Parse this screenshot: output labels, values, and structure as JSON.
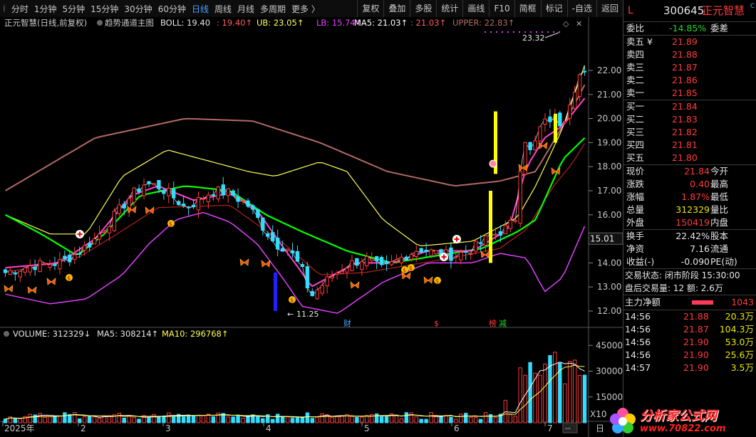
{
  "toolbar": {
    "periods": [
      "分时",
      "1分钟",
      "5分钟",
      "15分钟",
      "30分钟",
      "60分钟",
      "日线",
      "周线",
      "月线",
      "多周期",
      "更多 〉"
    ],
    "active": "日线",
    "tools": [
      "复权",
      "叠加",
      "多股",
      "统计",
      "画线",
      "F10",
      "简框",
      "标记"
    ],
    "self_select": "-自选",
    "back": "返回"
  },
  "main_legend": {
    "name": "正元智慧(日线,前复权)",
    "indicator": "趋势通道主图",
    "boll": "BOLL: 19.40",
    "boll2": ": 19.40↑",
    "ub": "UB: 23.05↑",
    "lb": "LB: 15.74↑",
    "ma5": "MA5: 21.03↑",
    "ma5b": ": 21.03↑",
    "upper": "UPPER: 22.83↑"
  },
  "price_axis": [
    "22.00",
    "21.00",
    "20.00",
    "19.00",
    "18.00",
    "17.00",
    "16.00",
    "15.00",
    "14.00",
    "13.00",
    "12.00"
  ],
  "price_marker": "15.01",
  "annotations": {
    "high": "23.32",
    "low": "11.25",
    "cai": "财",
    "dollar": "$",
    "lhb": "榜",
    "jian": "减"
  },
  "volume_legend": {
    "volume": "VOLUME: 312329↓",
    "ma5": "MA5: 308214↑",
    "ma10": "MA10: 296768↑"
  },
  "volume_axis": [
    "45000",
    "30000",
    "15000"
  ],
  "volume_unit": "X10",
  "x_axis": [
    "2025年",
    "2",
    "3",
    "4",
    "5",
    "6",
    "7"
  ],
  "x_axis_right": "日",
  "scroll_label": "--",
  "quote": {
    "flag": "L",
    "code": "300645",
    "name": "正元智慧",
    "badge": "C",
    "weibi_label": "委比",
    "weibi": "-14.85%",
    "weicha_label": "委差",
    "sell": [
      {
        "label": "卖五 ¥",
        "price": "21.89"
      },
      {
        "label": "卖四",
        "price": "21.88"
      },
      {
        "label": "卖三",
        "price": "21.87"
      },
      {
        "label": "卖二",
        "price": "21.86"
      },
      {
        "label": "卖一",
        "price": "21.85"
      }
    ],
    "buy": [
      {
        "label": "买一",
        "price": "21.84"
      },
      {
        "label": "买二",
        "price": "21.83"
      },
      {
        "label": "买三",
        "price": "21.82"
      },
      {
        "label": "买四",
        "price": "21.81"
      },
      {
        "label": "买五",
        "price": "21.80"
      }
    ],
    "stats": [
      {
        "l1": "现价",
        "v1": "21.84",
        "l2": "今开",
        "c": "red"
      },
      {
        "l1": "涨跌",
        "v1": "0.40",
        "l2": "最高",
        "c": "red"
      },
      {
        "l1": "涨幅",
        "v1": "1.87%",
        "l2": "最低",
        "c": "red"
      },
      {
        "l1": "总量",
        "v1": "312329",
        "l2": "量比",
        "c": "yellow"
      },
      {
        "l1": "外盘",
        "v1": "150419",
        "l2": "内盘",
        "c": "red"
      }
    ],
    "stats2": [
      {
        "l1": "换手",
        "v1": "22.42%",
        "l2": "股本"
      },
      {
        "l1": "净资",
        "v1": "7.16",
        "l2": "流通"
      },
      {
        "l1": "收益(-)",
        "v1": "-0.090",
        "l2": "PE(动)"
      }
    ],
    "trade_status": "交易状态: 闭市阶段 15:30:00",
    "after_hours": "盘后交易量: 12  额: 2.6万",
    "main_flow_label": "主力净额",
    "main_flow": "1043",
    "ticks": [
      {
        "time": "14:56",
        "price": "21.88",
        "vol": "20.3万"
      },
      {
        "time": "14:56",
        "price": "21.87",
        "vol": "104.3万"
      },
      {
        "time": "14:56",
        "price": "21.90",
        "vol": "53.0万"
      },
      {
        "time": "14:56",
        "price": "21.90",
        "vol": "25.6万"
      },
      {
        "time": "14:57",
        "price": "21.90",
        "vol": "3.5万"
      }
    ]
  },
  "watermark": {
    "text": "分析家公式网",
    "url": "www.70822.com"
  },
  "colors": {
    "up": "#ff3b3b",
    "down": "#32dcff",
    "mid": "#00ff00",
    "ub": "#ffff55",
    "lb": "#e040fb",
    "upper": "#b06a62",
    "ma5": "#ffffff"
  }
}
